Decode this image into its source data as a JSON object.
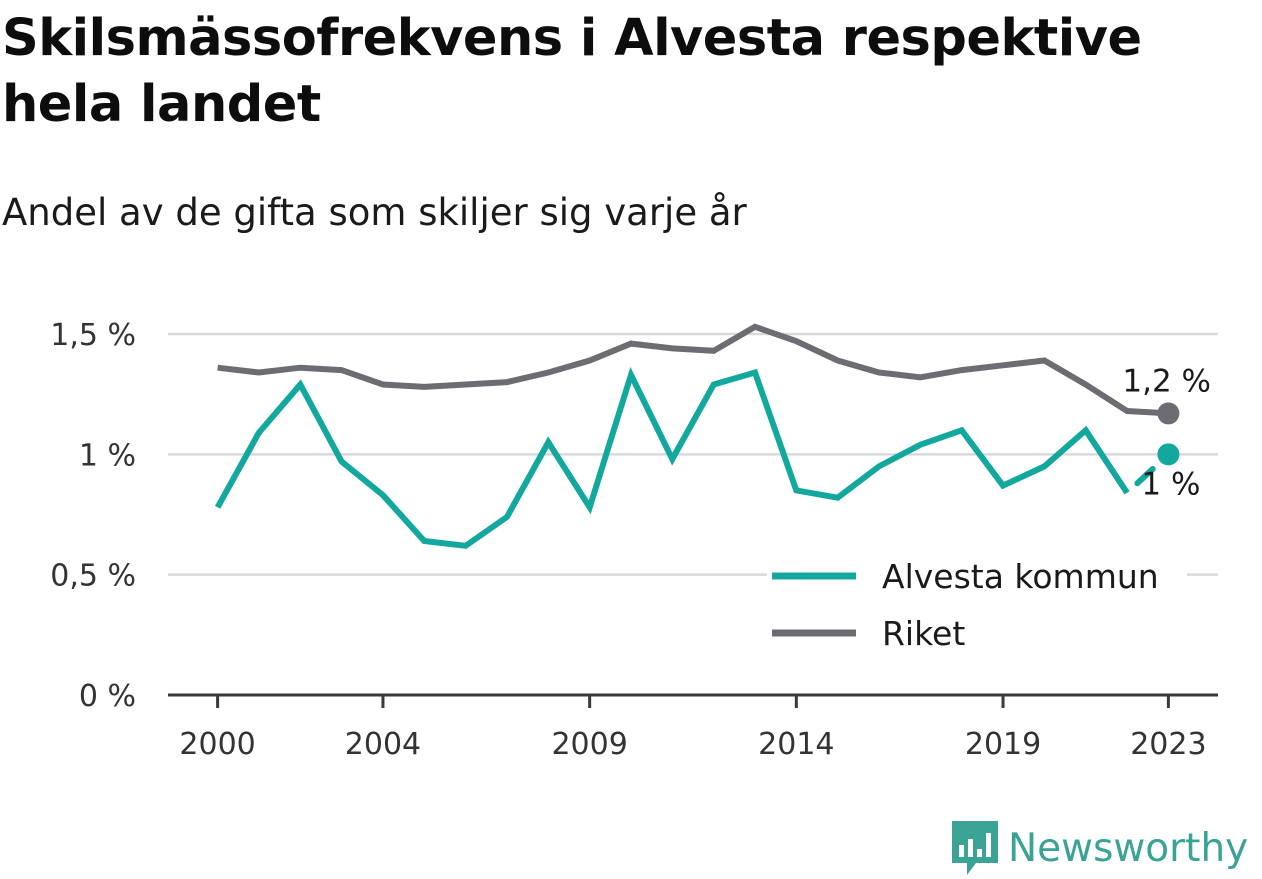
{
  "title": "Skilsmässofrekvens i Alvesta respektive hela landet",
  "subtitle": "Andel av de gifta som skiljer sig varje år",
  "brand": {
    "name": "Newsworthy",
    "icon": "newsworthy-logo-icon",
    "color": "#3aa396"
  },
  "chart_data": {
    "type": "line",
    "x": [
      2000,
      2001,
      2002,
      2003,
      2004,
      2005,
      2006,
      2007,
      2008,
      2009,
      2010,
      2011,
      2012,
      2013,
      2014,
      2015,
      2016,
      2017,
      2018,
      2019,
      2020,
      2021,
      2022,
      2023
    ],
    "xticks": [
      2000,
      2004,
      2009,
      2014,
      2019,
      2023
    ],
    "xticklabels": [
      "2000",
      "2004",
      "2009",
      "2014",
      "2019",
      "2023"
    ],
    "yticks": [
      0,
      0.5,
      1,
      1.5
    ],
    "yticklabels": [
      "0 %",
      "0,5 %",
      "1 %",
      "1,5 %"
    ],
    "ylim": [
      0,
      1.5
    ],
    "xlim": [
      1998.8,
      2024.2
    ],
    "grid": true,
    "legend_position": "bottom-right",
    "series": [
      {
        "name": "Alvesta kommun",
        "color": "#13a89e",
        "values": [
          0.78,
          1.09,
          1.29,
          0.97,
          0.83,
          0.64,
          0.62,
          0.74,
          1.05,
          0.78,
          1.33,
          0.98,
          1.29,
          1.34,
          0.85,
          0.82,
          0.95,
          1.04,
          1.1,
          0.87,
          0.95,
          1.1,
          0.84,
          1.0
        ],
        "end_label": "1 %",
        "gap_before_last": true
      },
      {
        "name": "Riket",
        "color": "#6e6c72",
        "values": [
          1.36,
          1.34,
          1.36,
          1.35,
          1.29,
          1.28,
          1.29,
          1.3,
          1.34,
          1.39,
          1.46,
          1.44,
          1.43,
          1.53,
          1.47,
          1.39,
          1.34,
          1.32,
          1.35,
          1.37,
          1.39,
          1.29,
          1.18,
          1.17
        ],
        "end_label": "1,2 %"
      }
    ]
  }
}
